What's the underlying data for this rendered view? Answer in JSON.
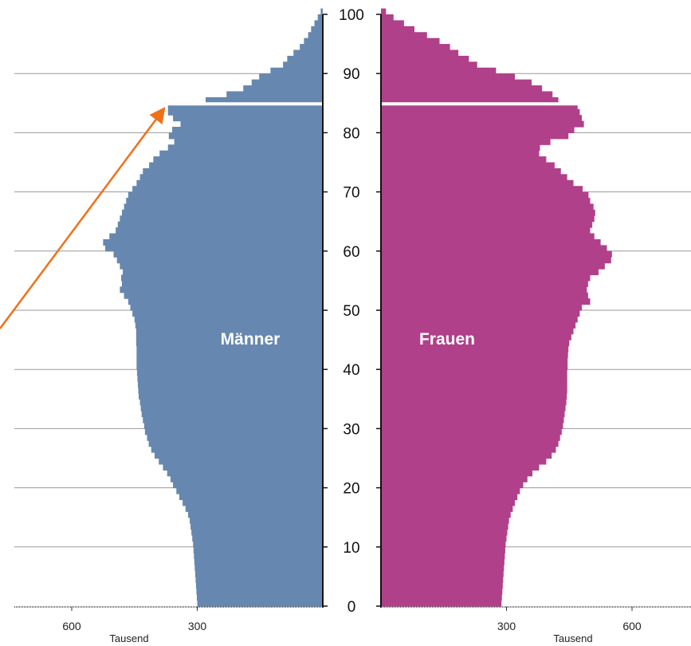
{
  "chart_data": {
    "type": "bar",
    "orientation": "horizontal-population-pyramid",
    "y_axis": {
      "min": 0,
      "max": 100,
      "ticks": [
        0,
        10,
        20,
        30,
        40,
        50,
        60,
        70,
        80,
        90,
        100
      ]
    },
    "x_axis": {
      "unit_label": "Tausend",
      "ticks": [
        600,
        300
      ],
      "max": 700
    },
    "grid": true,
    "colors": {
      "maenner": "#6688b0",
      "frauen": "#b0408a",
      "grid": "#9a9a9a",
      "axis": "#111111",
      "highlight_line": "#ffffff",
      "arrow": "#f07018"
    },
    "highlight_age": 84,
    "annotation_arrow": "orange arrow pointing to the top of the male bar at age 84",
    "series": [
      {
        "name": "Männer",
        "values": [
          300,
          301,
          302,
          303,
          304,
          305,
          306,
          307,
          308,
          309,
          310,
          312,
          314,
          316,
          318,
          322,
          328,
          335,
          343,
          350,
          358,
          364,
          372,
          382,
          392,
          402,
          410,
          416,
          420,
          425,
          427,
          430,
          433,
          435,
          437,
          440,
          441,
          442,
          443,
          444,
          445,
          445,
          445,
          445,
          446,
          446,
          446,
          448,
          450,
          455,
          460,
          465,
          475,
          485,
          480,
          482,
          478,
          485,
          492,
          500,
          520,
          525,
          510,
          495,
          490,
          485,
          480,
          475,
          470,
          465,
          455,
          445,
          437,
          430,
          415,
          405,
          390,
          370,
          355,
          368,
          360,
          340,
          358,
          370,
          370,
          280,
          230,
          190,
          170,
          152,
          125,
          95,
          85,
          70,
          55,
          45,
          35,
          28,
          20,
          12,
          5
        ]
      },
      {
        "name": "Frauen",
        "values": [
          288,
          289,
          290,
          291,
          292,
          293,
          294,
          295,
          296,
          297,
          298,
          300,
          302,
          304,
          306,
          310,
          315,
          320,
          326,
          332,
          340,
          350,
          362,
          378,
          395,
          408,
          418,
          424,
          428,
          432,
          435,
          437,
          439,
          441,
          443,
          444,
          445,
          445,
          445,
          445,
          446,
          446,
          447,
          448,
          450,
          455,
          460,
          465,
          470,
          475,
          480,
          500,
          495,
          492,
          495,
          500,
          520,
          535,
          550,
          552,
          540,
          525,
          510,
          500,
          505,
          510,
          512,
          508,
          500,
          496,
          482,
          460,
          445,
          430,
          415,
          395,
          378,
          380,
          405,
          448,
          462,
          485,
          480,
          475,
          470,
          424,
          410,
          385,
          360,
          320,
          275,
          230,
          210,
          185,
          165,
          140,
          110,
          80,
          55,
          30,
          12
        ]
      }
    ]
  },
  "labels": {
    "left_series": "Männer",
    "right_series": "Frauen",
    "unit_left": "Tausend",
    "unit_right": "Tausend"
  }
}
